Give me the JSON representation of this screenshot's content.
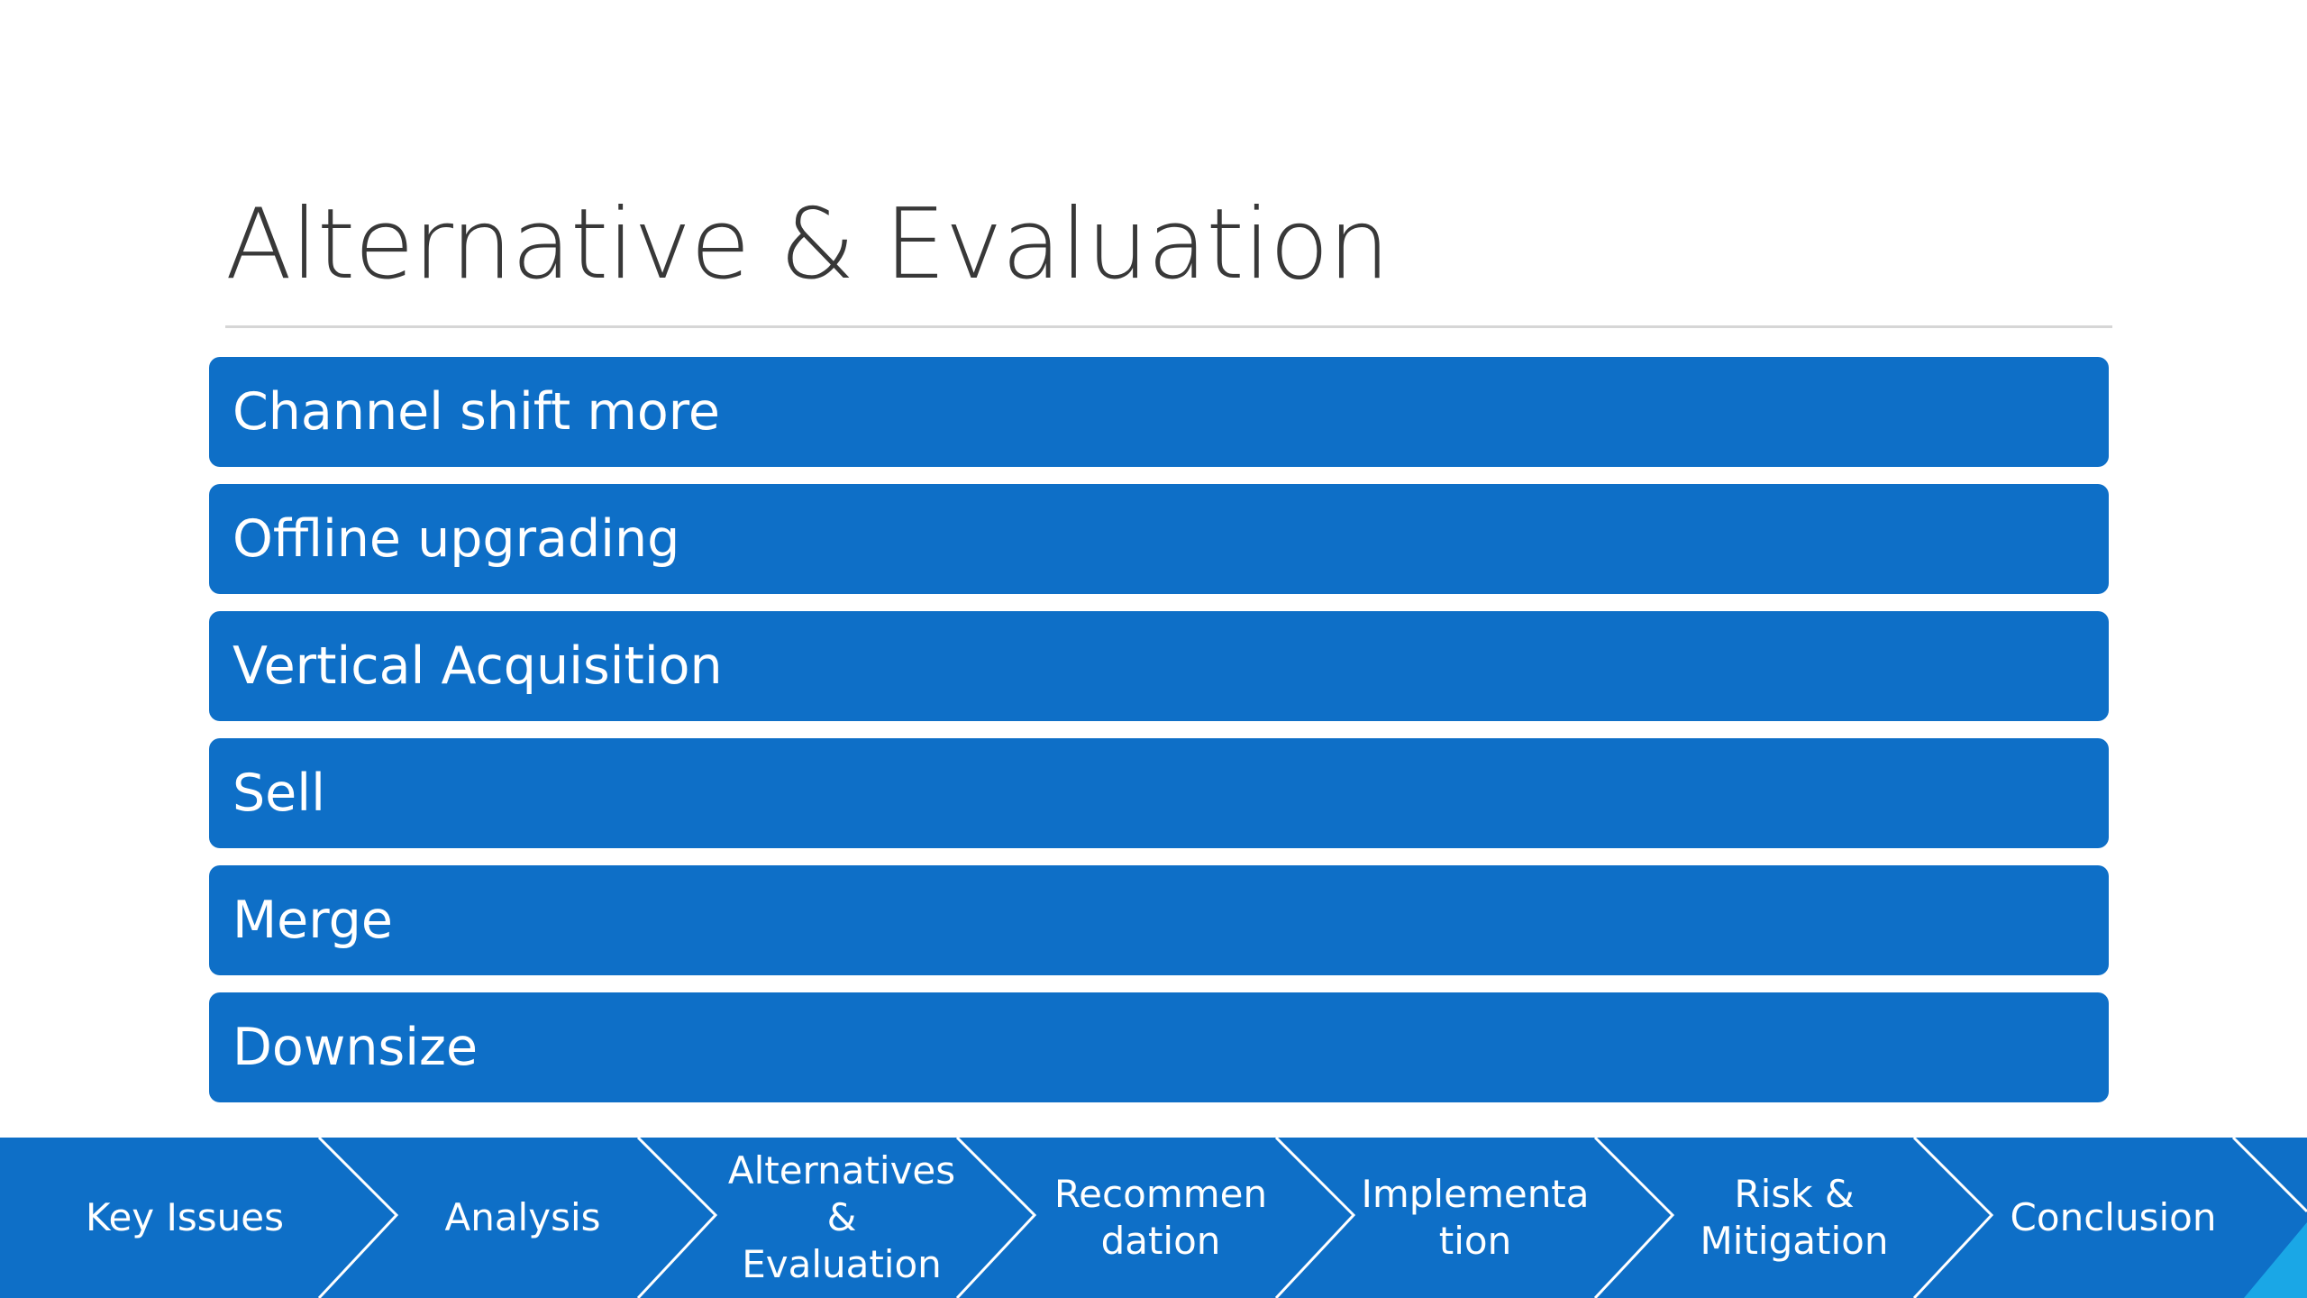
{
  "slide": {
    "title": "Alternative & Evaluation"
  },
  "alternatives": [
    "Channel shift more",
    "Offline upgrading",
    "Vertical Acquisition",
    "Sell",
    "Merge",
    "Downsize"
  ],
  "process_steps": [
    "Key Issues",
    "Analysis",
    "Alternatives\n&\nEvaluation",
    "Recommen\ndation",
    "Implementa\ntion",
    "Risk &\nMitigation",
    "Conclusion"
  ],
  "colors": {
    "accent_blue": "#0e6fc7",
    "arrow_edge": "#ffffff",
    "title_text": "#383838",
    "rule": "#d6d6d6",
    "corner_accent": "#1aa7e6"
  }
}
